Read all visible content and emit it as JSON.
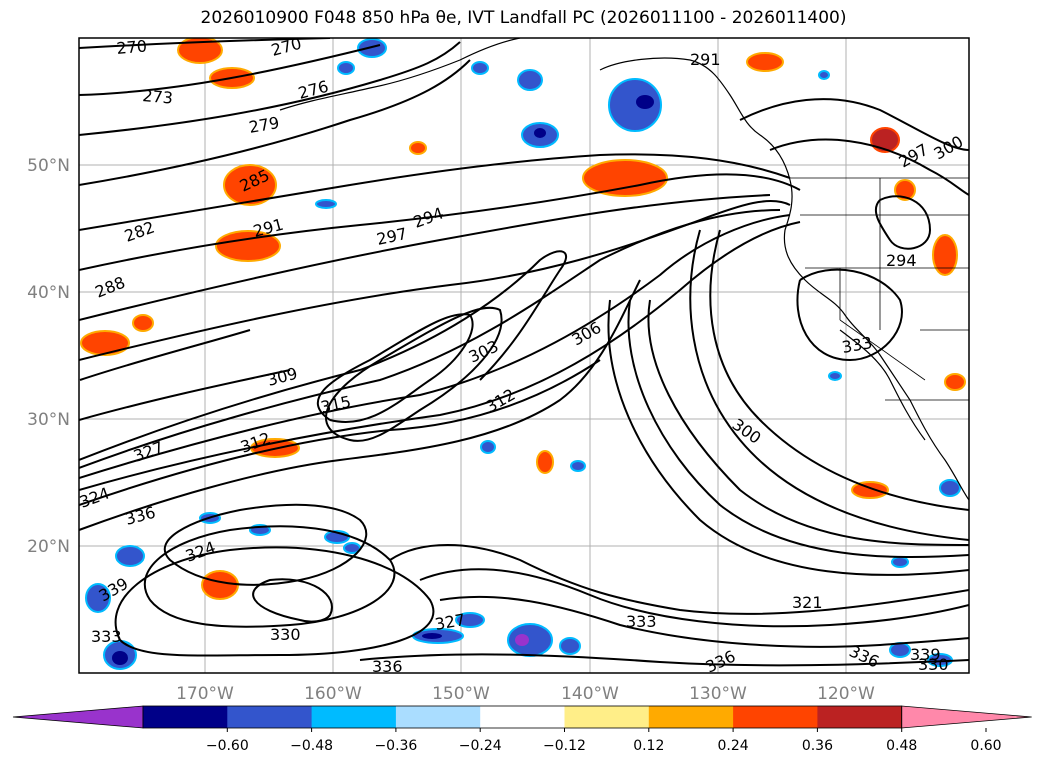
{
  "title": "2026010900 F048 850 hPa θe, IVT Landfall PC (2026011100 - 2026011400)",
  "lon_ticks": [
    "170°W",
    "160°W",
    "150°W",
    "140°W",
    "130°W",
    "120°W"
  ],
  "lat_ticks": [
    "50°N",
    "40°N",
    "30°N",
    "20°N"
  ],
  "colorbar": {
    "colors": [
      "#9933cc",
      "#000088",
      "#3355cc",
      "#00bbff",
      "#aaddff",
      "#ffffff",
      "#ffee88",
      "#ffaa00",
      "#ff4400",
      "#bb2222",
      "#ff88aa"
    ],
    "tick_labels": [
      "−0.60",
      "−0.48",
      "−0.36",
      "−0.24",
      "−0.12",
      "0.12",
      "0.24",
      "0.36",
      "0.48",
      "0.60"
    ]
  },
  "contour_labels": [
    "270",
    "270",
    "273",
    "276",
    "279",
    "285",
    "282",
    "291",
    "288",
    "297",
    "294",
    "291",
    "294",
    "297",
    "300",
    "309",
    "303",
    "306",
    "315",
    "312",
    "300",
    "327",
    "324",
    "336",
    "312",
    "333",
    "324",
    "330",
    "339",
    "333",
    "336",
    "327",
    "333",
    "336",
    "336",
    "321",
    "339",
    "330"
  ]
}
